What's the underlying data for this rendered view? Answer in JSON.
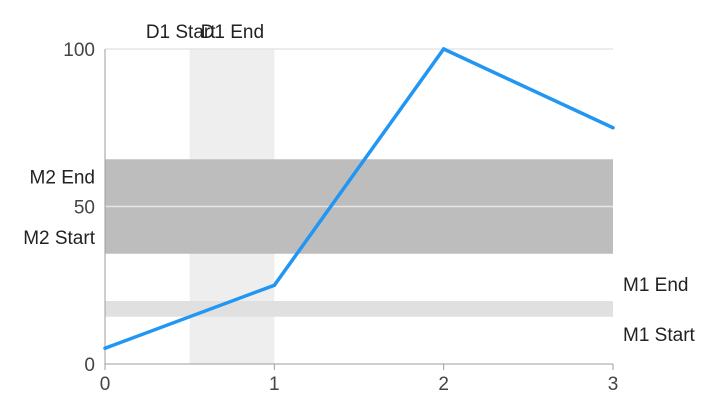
{
  "chart_data": {
    "type": "line",
    "title": "",
    "xlabel": "",
    "ylabel": "",
    "xlim": [
      0,
      3
    ],
    "ylim": [
      0,
      100
    ],
    "x_ticks": [
      "0",
      "1",
      "2",
      "3"
    ],
    "y_ticks": [
      "0",
      "50",
      "100"
    ],
    "grid": "horizontal",
    "series": [
      {
        "x": [
          0,
          1,
          2,
          3
        ],
        "values": [
          5,
          25,
          100,
          75
        ],
        "color": "#2196f3"
      }
    ],
    "vertical_ranges": [
      {
        "start": 0.5,
        "end": 1,
        "start_label": "D1 Start",
        "end_label": "D1 End",
        "color": "#eeeeee"
      }
    ],
    "horizontal_ranges": [
      {
        "start": 35,
        "end": 65,
        "start_label": "M2 Start",
        "end_label": "M2 End",
        "color": "#bdbdbd",
        "label_side": "left"
      },
      {
        "start": 15,
        "end": 20,
        "start_label": "M1 Start",
        "end_label": "M1 End",
        "color": "#e0e0e0",
        "label_side": "right"
      }
    ]
  }
}
